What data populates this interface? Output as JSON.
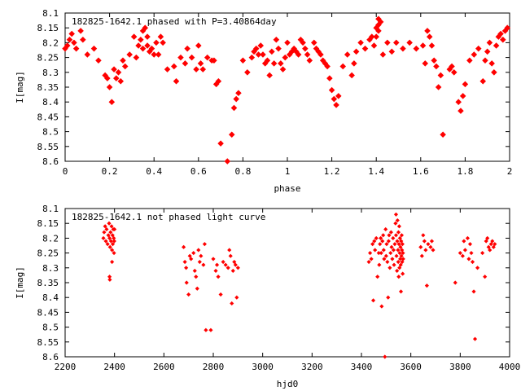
{
  "chart_data": [
    {
      "type": "scatter",
      "title": "182825-1642.1 phased with P=3.40864day",
      "xlabel": "phase",
      "ylabel": "I[mag]",
      "xlim": [
        0,
        2
      ],
      "ylim": [
        8.1,
        8.6
      ],
      "y_inverted": true,
      "x_ticks": [
        "0",
        "0.2",
        "0.4",
        "0.6",
        "0.8",
        "1",
        "1.2",
        "1.4",
        "1.6",
        "1.8",
        "2"
      ],
      "x_tick_values": [
        0,
        0.2,
        0.4,
        0.6,
        0.8,
        1.0,
        1.2,
        1.4,
        1.6,
        1.8,
        2.0
      ],
      "y_ticks": [
        "8.1",
        "8.15",
        "8.2",
        "8.25",
        "8.3",
        "8.35",
        "8.4",
        "8.45",
        "8.5",
        "8.55",
        "8.6"
      ],
      "y_tick_values": [
        8.1,
        8.15,
        8.2,
        8.25,
        8.3,
        8.35,
        8.4,
        8.45,
        8.5,
        8.55,
        8.6
      ],
      "grid": false,
      "marker": "filled-diamond",
      "color": "#ff0000",
      "points": [
        [
          0.0,
          8.22
        ],
        [
          0.01,
          8.21
        ],
        [
          0.02,
          8.19
        ],
        [
          0.03,
          8.17
        ],
        [
          0.04,
          8.2
        ],
        [
          0.05,
          8.22
        ],
        [
          0.07,
          8.16
        ],
        [
          0.08,
          8.19
        ],
        [
          0.1,
          8.24
        ],
        [
          0.13,
          8.22
        ],
        [
          0.15,
          8.26
        ],
        [
          0.18,
          8.31
        ],
        [
          0.19,
          8.32
        ],
        [
          0.2,
          8.35
        ],
        [
          0.21,
          8.4
        ],
        [
          0.22,
          8.29
        ],
        [
          0.23,
          8.32
        ],
        [
          0.24,
          8.3
        ],
        [
          0.25,
          8.33
        ],
        [
          0.26,
          8.26
        ],
        [
          0.27,
          8.28
        ],
        [
          0.29,
          8.24
        ],
        [
          0.31,
          8.18
        ],
        [
          0.32,
          8.25
        ],
        [
          0.33,
          8.21
        ],
        [
          0.34,
          8.19
        ],
        [
          0.35,
          8.16
        ],
        [
          0.35,
          8.22
        ],
        [
          0.36,
          8.15
        ],
        [
          0.37,
          8.18
        ],
        [
          0.37,
          8.21
        ],
        [
          0.38,
          8.23
        ],
        [
          0.39,
          8.22
        ],
        [
          0.4,
          8.24
        ],
        [
          0.41,
          8.2
        ],
        [
          0.42,
          8.24
        ],
        [
          0.43,
          8.18
        ],
        [
          0.44,
          8.2
        ],
        [
          0.46,
          8.29
        ],
        [
          0.49,
          8.28
        ],
        [
          0.5,
          8.33
        ],
        [
          0.52,
          8.25
        ],
        [
          0.54,
          8.27
        ],
        [
          0.55,
          8.22
        ],
        [
          0.57,
          8.25
        ],
        [
          0.59,
          8.29
        ],
        [
          0.6,
          8.21
        ],
        [
          0.61,
          8.27
        ],
        [
          0.62,
          8.29
        ],
        [
          0.64,
          8.25
        ],
        [
          0.66,
          8.26
        ],
        [
          0.67,
          8.26
        ],
        [
          0.68,
          8.34
        ],
        [
          0.69,
          8.33
        ],
        [
          0.7,
          8.54
        ],
        [
          0.73,
          8.6
        ],
        [
          0.75,
          8.51
        ],
        [
          0.76,
          8.42
        ],
        [
          0.77,
          8.39
        ],
        [
          0.78,
          8.37
        ],
        [
          0.8,
          8.26
        ],
        [
          0.82,
          8.3
        ],
        [
          0.84,
          8.25
        ],
        [
          0.85,
          8.23
        ],
        [
          0.86,
          8.22
        ],
        [
          0.87,
          8.24
        ],
        [
          0.88,
          8.21
        ],
        [
          0.89,
          8.24
        ],
        [
          0.9,
          8.27
        ],
        [
          0.91,
          8.26
        ],
        [
          0.92,
          8.31
        ],
        [
          0.93,
          8.23
        ],
        [
          0.94,
          8.27
        ],
        [
          0.95,
          8.19
        ],
        [
          0.96,
          8.22
        ],
        [
          0.97,
          8.27
        ],
        [
          0.98,
          8.29
        ],
        [
          0.99,
          8.25
        ],
        [
          1.0,
          8.2
        ],
        [
          1.01,
          8.24
        ],
        [
          1.02,
          8.23
        ],
        [
          1.03,
          8.22
        ],
        [
          1.04,
          8.23
        ],
        [
          1.05,
          8.24
        ],
        [
          1.06,
          8.19
        ],
        [
          1.07,
          8.2
        ],
        [
          1.08,
          8.22
        ],
        [
          1.09,
          8.24
        ],
        [
          1.1,
          8.26
        ],
        [
          1.12,
          8.2
        ],
        [
          1.13,
          8.22
        ],
        [
          1.14,
          8.23
        ],
        [
          1.15,
          8.24
        ],
        [
          1.16,
          8.26
        ],
        [
          1.17,
          8.27
        ],
        [
          1.18,
          8.28
        ],
        [
          1.19,
          8.32
        ],
        [
          1.2,
          8.36
        ],
        [
          1.21,
          8.39
        ],
        [
          1.22,
          8.41
        ],
        [
          1.23,
          8.38
        ],
        [
          1.25,
          8.28
        ],
        [
          1.27,
          8.24
        ],
        [
          1.29,
          8.31
        ],
        [
          1.3,
          8.27
        ],
        [
          1.31,
          8.23
        ],
        [
          1.33,
          8.2
        ],
        [
          1.35,
          8.22
        ],
        [
          1.37,
          8.19
        ],
        [
          1.38,
          8.18
        ],
        [
          1.39,
          8.21
        ],
        [
          1.4,
          8.15
        ],
        [
          1.4,
          8.18
        ],
        [
          1.41,
          8.12
        ],
        [
          1.41,
          8.14
        ],
        [
          1.41,
          8.16
        ],
        [
          1.42,
          8.13
        ],
        [
          1.43,
          8.24
        ],
        [
          1.45,
          8.2
        ],
        [
          1.47,
          8.23
        ],
        [
          1.49,
          8.2
        ],
        [
          1.52,
          8.22
        ],
        [
          1.55,
          8.2
        ],
        [
          1.58,
          8.22
        ],
        [
          1.61,
          8.21
        ],
        [
          1.62,
          8.27
        ],
        [
          1.63,
          8.16
        ],
        [
          1.64,
          8.18
        ],
        [
          1.65,
          8.21
        ],
        [
          1.66,
          8.26
        ],
        [
          1.67,
          8.28
        ],
        [
          1.68,
          8.35
        ],
        [
          1.69,
          8.31
        ],
        [
          1.7,
          8.51
        ],
        [
          1.73,
          8.29
        ],
        [
          1.74,
          8.28
        ],
        [
          1.75,
          8.3
        ],
        [
          1.77,
          8.4
        ],
        [
          1.78,
          8.43
        ],
        [
          1.79,
          8.38
        ],
        [
          1.8,
          8.34
        ],
        [
          1.82,
          8.26
        ],
        [
          1.84,
          8.24
        ],
        [
          1.86,
          8.22
        ],
        [
          1.88,
          8.33
        ],
        [
          1.89,
          8.26
        ],
        [
          1.9,
          8.23
        ],
        [
          1.91,
          8.2
        ],
        [
          1.92,
          8.27
        ],
        [
          1.93,
          8.3
        ],
        [
          1.94,
          8.21
        ],
        [
          1.95,
          8.18
        ],
        [
          1.96,
          8.17
        ],
        [
          1.97,
          8.19
        ],
        [
          1.98,
          8.16
        ],
        [
          1.99,
          8.15
        ]
      ]
    },
    {
      "type": "scatter",
      "title": "182825-1642.1 not phased light curve",
      "xlabel": "hjd0",
      "ylabel": "I[mag]",
      "xlim": [
        2200,
        4000
      ],
      "ylim": [
        8.1,
        8.6
      ],
      "y_inverted": true,
      "x_ticks": [
        "2200",
        "2400",
        "2600",
        "2800",
        "3000",
        "3200",
        "3400",
        "3600",
        "3800",
        "4000"
      ],
      "x_tick_values": [
        2200,
        2400,
        2600,
        2800,
        3000,
        3200,
        3400,
        3600,
        3800,
        4000
      ],
      "y_ticks": [
        "8.1",
        "8.15",
        "8.2",
        "8.25",
        "8.3",
        "8.35",
        "8.4",
        "8.45",
        "8.5",
        "8.55",
        "8.6"
      ],
      "y_tick_values": [
        8.1,
        8.15,
        8.2,
        8.25,
        8.3,
        8.35,
        8.4,
        8.45,
        8.5,
        8.55,
        8.6
      ],
      "grid": false,
      "marker": "small-diamond",
      "color": "#ff0000",
      "points": [
        [
          2355,
          8.2
        ],
        [
          2358,
          8.18
        ],
        [
          2362,
          8.16
        ],
        [
          2365,
          8.21
        ],
        [
          2368,
          8.17
        ],
        [
          2372,
          8.22
        ],
        [
          2375,
          8.19
        ],
        [
          2378,
          8.15
        ],
        [
          2380,
          8.2
        ],
        [
          2382,
          8.23
        ],
        [
          2384,
          8.18
        ],
        [
          2386,
          8.21
        ],
        [
          2388,
          8.16
        ],
        [
          2390,
          8.24
        ],
        [
          2392,
          8.19
        ],
        [
          2393,
          8.22
        ],
        [
          2395,
          8.17
        ],
        [
          2397,
          8.2
        ],
        [
          2398,
          8.25
        ],
        [
          2399,
          8.21
        ],
        [
          2380,
          8.33
        ],
        [
          2381,
          8.34
        ],
        [
          2390,
          8.28
        ],
        [
          2400,
          8.17
        ],
        [
          2680,
          8.23
        ],
        [
          2685,
          8.28
        ],
        [
          2690,
          8.3
        ],
        [
          2692,
          8.35
        ],
        [
          2700,
          8.39
        ],
        [
          2705,
          8.26
        ],
        [
          2710,
          8.27
        ],
        [
          2720,
          8.25
        ],
        [
          2725,
          8.31
        ],
        [
          2730,
          8.33
        ],
        [
          2735,
          8.37
        ],
        [
          2740,
          8.24
        ],
        [
          2745,
          8.28
        ],
        [
          2750,
          8.26
        ],
        [
          2760,
          8.29
        ],
        [
          2765,
          8.22
        ],
        [
          2770,
          8.51
        ],
        [
          2790,
          8.51
        ],
        [
          2800,
          8.27
        ],
        [
          2810,
          8.31
        ],
        [
          2815,
          8.29
        ],
        [
          2820,
          8.33
        ],
        [
          2830,
          8.39
        ],
        [
          2840,
          8.28
        ],
        [
          2850,
          8.29
        ],
        [
          2860,
          8.3
        ],
        [
          2865,
          8.24
        ],
        [
          2870,
          8.26
        ],
        [
          2875,
          8.42
        ],
        [
          2880,
          8.31
        ],
        [
          2885,
          8.28
        ],
        [
          2890,
          8.29
        ],
        [
          2895,
          8.4
        ],
        [
          2900,
          8.3
        ],
        [
          3430,
          8.28
        ],
        [
          3435,
          8.25
        ],
        [
          3440,
          8.27
        ],
        [
          3445,
          8.22
        ],
        [
          3448,
          8.41
        ],
        [
          3452,
          8.21
        ],
        [
          3455,
          8.24
        ],
        [
          3460,
          8.2
        ],
        [
          3465,
          8.33
        ],
        [
          3470,
          8.25
        ],
        [
          3472,
          8.29
        ],
        [
          3475,
          8.22
        ],
        [
          3478,
          8.2
        ],
        [
          3480,
          8.25
        ],
        [
          3482,
          8.43
        ],
        [
          3485,
          8.21
        ],
        [
          3488,
          8.19
        ],
        [
          3490,
          8.24
        ],
        [
          3492,
          8.27
        ],
        [
          3495,
          8.6
        ],
        [
          3498,
          8.17
        ],
        [
          3500,
          8.26
        ],
        [
          3502,
          8.22
        ],
        [
          3505,
          8.28
        ],
        [
          3508,
          8.4
        ],
        [
          3510,
          8.21
        ],
        [
          3512,
          8.19
        ],
        [
          3515,
          8.3
        ],
        [
          3518,
          8.25
        ],
        [
          3520,
          8.18
        ],
        [
          3522,
          8.23
        ],
        [
          3525,
          8.27
        ],
        [
          3528,
          8.2
        ],
        [
          3530,
          8.24
        ],
        [
          3532,
          8.29
        ],
        [
          3535,
          8.22
        ],
        [
          3538,
          8.15
        ],
        [
          3540,
          8.12
        ],
        [
          3540,
          8.19
        ],
        [
          3542,
          8.26
        ],
        [
          3544,
          8.31
        ],
        [
          3545,
          8.21
        ],
        [
          3546,
          8.14
        ],
        [
          3548,
          8.24
        ],
        [
          3549,
          8.28
        ],
        [
          3550,
          8.18
        ],
        [
          3551,
          8.33
        ],
        [
          3552,
          8.22
        ],
        [
          3553,
          8.16
        ],
        [
          3554,
          8.3
        ],
        [
          3555,
          8.25
        ],
        [
          3556,
          8.2
        ],
        [
          3557,
          8.27
        ],
        [
          3558,
          8.23
        ],
        [
          3559,
          8.29
        ],
        [
          3560,
          8.38
        ],
        [
          3561,
          8.21
        ],
        [
          3562,
          8.26
        ],
        [
          3563,
          8.19
        ],
        [
          3564,
          8.24
        ],
        [
          3565,
          8.28
        ],
        [
          3566,
          8.22
        ],
        [
          3567,
          8.32
        ],
        [
          3568,
          8.25
        ],
        [
          3569,
          8.27
        ],
        [
          3640,
          8.23
        ],
        [
          3645,
          8.26
        ],
        [
          3650,
          8.19
        ],
        [
          3655,
          8.21
        ],
        [
          3660,
          8.24
        ],
        [
          3665,
          8.36
        ],
        [
          3670,
          8.22
        ],
        [
          3680,
          8.23
        ],
        [
          3685,
          8.21
        ],
        [
          3690,
          8.24
        ],
        [
          3780,
          8.35
        ],
        [
          3800,
          8.25
        ],
        [
          3810,
          8.26
        ],
        [
          3815,
          8.21
        ],
        [
          3820,
          8.24
        ],
        [
          3830,
          8.2
        ],
        [
          3835,
          8.27
        ],
        [
          3840,
          8.22
        ],
        [
          3845,
          8.25
        ],
        [
          3850,
          8.28
        ],
        [
          3855,
          8.38
        ],
        [
          3860,
          8.54
        ],
        [
          3870,
          8.3
        ],
        [
          3890,
          8.25
        ],
        [
          3900,
          8.33
        ],
        [
          3905,
          8.21
        ],
        [
          3910,
          8.2
        ],
        [
          3915,
          8.23
        ],
        [
          3920,
          8.24
        ],
        [
          3925,
          8.22
        ],
        [
          3930,
          8.21
        ],
        [
          3935,
          8.23
        ],
        [
          3940,
          8.22
        ]
      ]
    }
  ]
}
